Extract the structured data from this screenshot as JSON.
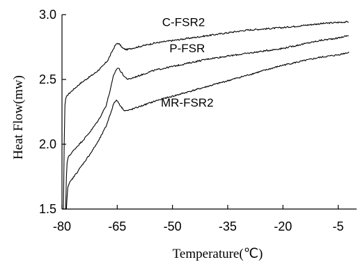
{
  "chart_data": {
    "type": "line",
    "xlabel": "Temperature(℃)",
    "ylabel": "Heat Flow(mw)",
    "xlim": [
      -80,
      0
    ],
    "ylim": [
      1.5,
      3.0
    ],
    "xticks": [
      -80,
      -65,
      -50,
      -35,
      -20,
      -5
    ],
    "yticks": [
      1.5,
      2.0,
      2.5,
      3.0
    ],
    "grid": false,
    "legend": "none",
    "series": [
      {
        "name": "C-FSR2",
        "color": "#000000",
        "points": [
          [
            -79.6,
            1.5
          ],
          [
            -79.4,
            2.0
          ],
          [
            -79.2,
            2.3
          ],
          [
            -79.0,
            2.35
          ],
          [
            -78.5,
            2.38
          ],
          [
            -77.0,
            2.42
          ],
          [
            -75.0,
            2.47
          ],
          [
            -73.0,
            2.51
          ],
          [
            -71.0,
            2.55
          ],
          [
            -69.0,
            2.6
          ],
          [
            -67.5,
            2.65
          ],
          [
            -66.5,
            2.71
          ],
          [
            -65.6,
            2.76
          ],
          [
            -65.0,
            2.78
          ],
          [
            -64.3,
            2.77
          ],
          [
            -63.5,
            2.74
          ],
          [
            -62.5,
            2.73
          ],
          [
            -61.0,
            2.74
          ],
          [
            -58.0,
            2.76
          ],
          [
            -55.0,
            2.78
          ],
          [
            -50.0,
            2.8
          ],
          [
            -45.0,
            2.82
          ],
          [
            -40.0,
            2.84
          ],
          [
            -35.0,
            2.86
          ],
          [
            -30.0,
            2.88
          ],
          [
            -25.0,
            2.89
          ],
          [
            -20.0,
            2.9
          ],
          [
            -15.0,
            2.915
          ],
          [
            -10.0,
            2.93
          ],
          [
            -5.0,
            2.94
          ],
          [
            -2.0,
            2.945
          ]
        ]
      },
      {
        "name": "P-FSR",
        "color": "#000000",
        "points": [
          [
            -79.0,
            1.5
          ],
          [
            -78.8,
            1.75
          ],
          [
            -78.6,
            1.86
          ],
          [
            -78.3,
            1.9
          ],
          [
            -77.5,
            1.93
          ],
          [
            -76.0,
            1.98
          ],
          [
            -74.0,
            2.04
          ],
          [
            -72.0,
            2.11
          ],
          [
            -70.0,
            2.19
          ],
          [
            -68.0,
            2.3
          ],
          [
            -66.8,
            2.43
          ],
          [
            -66.0,
            2.53
          ],
          [
            -65.2,
            2.58
          ],
          [
            -64.7,
            2.59
          ],
          [
            -64.0,
            2.56
          ],
          [
            -63.0,
            2.52
          ],
          [
            -62.0,
            2.5
          ],
          [
            -61.0,
            2.51
          ],
          [
            -58.0,
            2.54
          ],
          [
            -55.0,
            2.57
          ],
          [
            -50.0,
            2.6
          ],
          [
            -45.0,
            2.63
          ],
          [
            -40.0,
            2.66
          ],
          [
            -35.0,
            2.68
          ],
          [
            -30.0,
            2.7
          ],
          [
            -25.0,
            2.72
          ],
          [
            -20.0,
            2.74
          ],
          [
            -15.0,
            2.77
          ],
          [
            -10.0,
            2.8
          ],
          [
            -5.0,
            2.82
          ],
          [
            -2.0,
            2.84
          ]
        ]
      },
      {
        "name": "MR-FSR2",
        "color": "#000000",
        "points": [
          [
            -78.8,
            1.5
          ],
          [
            -78.6,
            1.6
          ],
          [
            -78.4,
            1.67
          ],
          [
            -78.0,
            1.7
          ],
          [
            -77.0,
            1.74
          ],
          [
            -75.5,
            1.8
          ],
          [
            -74.0,
            1.86
          ],
          [
            -72.0,
            1.94
          ],
          [
            -70.0,
            2.03
          ],
          [
            -68.0,
            2.14
          ],
          [
            -66.8,
            2.24
          ],
          [
            -66.0,
            2.31
          ],
          [
            -65.3,
            2.34
          ],
          [
            -64.8,
            2.33
          ],
          [
            -64.0,
            2.29
          ],
          [
            -63.0,
            2.26
          ],
          [
            -62.0,
            2.26
          ],
          [
            -60.0,
            2.28
          ],
          [
            -57.0,
            2.31
          ],
          [
            -54.0,
            2.34
          ],
          [
            -50.0,
            2.37
          ],
          [
            -45.0,
            2.41
          ],
          [
            -40.0,
            2.45
          ],
          [
            -35.0,
            2.49
          ],
          [
            -30.0,
            2.53
          ],
          [
            -25.0,
            2.57
          ],
          [
            -20.0,
            2.61
          ],
          [
            -15.0,
            2.64
          ],
          [
            -10.0,
            2.67
          ],
          [
            -5.0,
            2.69
          ],
          [
            -2.0,
            2.71
          ]
        ]
      }
    ]
  }
}
